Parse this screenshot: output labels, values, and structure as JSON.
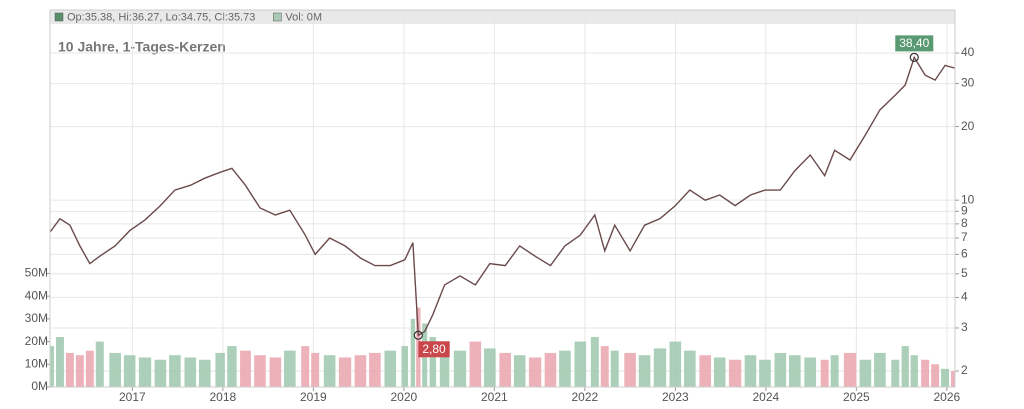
{
  "chart_data": {
    "type": "line",
    "title": "10 Jahre, 1-Tages-Kerzen",
    "legend": [
      {
        "text": "Op:35.38, Hi:36.27, Lo:34.75, Cl:35.73",
        "color": "#5a8f6a"
      },
      {
        "text": "Vol: 0M",
        "color": "#a9c9b4"
      }
    ],
    "log_scale": true,
    "grid": true,
    "xlim": [
      2016.09,
      2026.09
    ],
    "xticks": [
      2017,
      2018,
      2019,
      2020,
      2021,
      2022,
      2023,
      2024,
      2025,
      2026
    ],
    "ylim": [
      1.72,
      60
    ],
    "yticks": [
      2,
      3,
      4,
      5,
      6,
      7,
      8,
      9,
      10,
      20,
      30,
      40
    ],
    "price": {
      "color": "#6a4a4a",
      "x": [
        2016.09,
        2016.2,
        2016.31,
        2016.42,
        2016.53,
        2016.64,
        2016.81,
        2016.97,
        2017.14,
        2017.31,
        2017.47,
        2017.64,
        2017.8,
        2017.97,
        2018.1,
        2018.25,
        2018.41,
        2018.58,
        2018.74,
        2018.91,
        2019.02,
        2019.18,
        2019.35,
        2019.52,
        2019.68,
        2019.85,
        2020.01,
        2020.1,
        2020.16,
        2020.23,
        2020.32,
        2020.45,
        2020.62,
        2020.79,
        2020.95,
        2021.12,
        2021.28,
        2021.45,
        2021.62,
        2021.78,
        2021.95,
        2022.11,
        2022.22,
        2022.33,
        2022.5,
        2022.66,
        2022.83,
        2023.0,
        2023.16,
        2023.33,
        2023.49,
        2023.66,
        2023.83,
        2023.99,
        2024.16,
        2024.32,
        2024.49,
        2024.65,
        2024.76,
        2024.93,
        2025.1,
        2025.26,
        2025.43,
        2025.54,
        2025.64,
        2025.76,
        2025.87,
        2025.98,
        2026.09
      ],
      "values": [
        7.4,
        8.4,
        7.9,
        6.5,
        5.5,
        5.9,
        6.5,
        7.5,
        8.3,
        9.5,
        11.0,
        11.5,
        12.3,
        13.0,
        13.5,
        11.5,
        9.3,
        8.7,
        9.1,
        7.2,
        6.0,
        7.0,
        6.5,
        5.8,
        5.4,
        5.4,
        5.7,
        6.7,
        2.8,
        2.9,
        3.4,
        4.5,
        4.9,
        4.5,
        5.5,
        5.4,
        6.5,
        5.9,
        5.4,
        6.5,
        7.2,
        8.7,
        6.2,
        7.9,
        6.2,
        7.9,
        8.4,
        9.5,
        11.0,
        10.0,
        10.5,
        9.5,
        10.5,
        11.0,
        11.0,
        13.2,
        15.3,
        12.6,
        16.0,
        14.6,
        18.5,
        23.4,
        26.9,
        29.6,
        38.4,
        32.5,
        31.0,
        35.6,
        34.7
      ]
    },
    "volume": {
      "up_color": "#9cc7ab",
      "down_color": "#eaa4ad",
      "ylim": [
        0,
        166
      ],
      "yticks": [
        {
          "value": 0,
          "label": "0M"
        },
        {
          "value": 10,
          "label": "10M"
        },
        {
          "value": 20,
          "label": "20M"
        },
        {
          "value": 30,
          "label": "30M"
        },
        {
          "value": 40,
          "label": "40M"
        },
        {
          "value": 50,
          "label": "50M"
        }
      ],
      "values": [
        18,
        22,
        15,
        14,
        16,
        20,
        15,
        14,
        13,
        12,
        14,
        13,
        12,
        15,
        18,
        16,
        14,
        13,
        16,
        18,
        15,
        14,
        13,
        14,
        15,
        16,
        18,
        30,
        35,
        28,
        22,
        18,
        16,
        20,
        17,
        15,
        14,
        13,
        15,
        16,
        20,
        22,
        18,
        16,
        15,
        14,
        17,
        20,
        16,
        14,
        13,
        12,
        14,
        12,
        15,
        14,
        13,
        12,
        14,
        15,
        12,
        15,
        12,
        18,
        14,
        12,
        10,
        8,
        7
      ]
    },
    "annotations": [
      {
        "label": "38,40",
        "value": 38.4,
        "x": 2025.64,
        "color": "#5a9a72",
        "side": "above"
      },
      {
        "label": "2,80",
        "value": 2.8,
        "x": 2020.16,
        "color": "#c9474b",
        "side": "below"
      }
    ]
  }
}
